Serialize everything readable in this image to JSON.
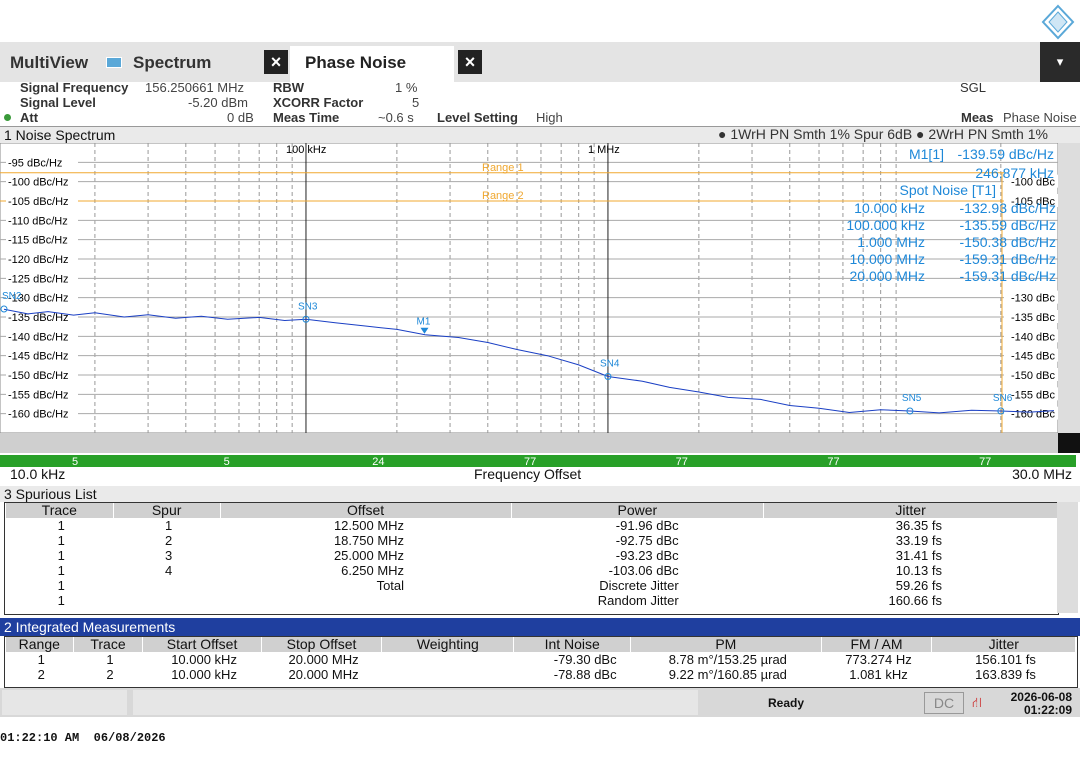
{
  "tabs": [
    "MultiView",
    "Spectrum",
    "Phase Noise"
  ],
  "header_right": {
    "sgl": "SGL",
    "meas_label": "Meas",
    "meas_value": "Phase Noise"
  },
  "settings": [
    [
      "Signal Frequency",
      "156.250661 MHz",
      "RBW",
      "1 %"
    ],
    [
      "Signal Level",
      "-5.20 dBm",
      "XCORR Factor",
      "5"
    ],
    [
      "Att",
      "0 dB",
      "Meas Time",
      "~0.6 s",
      "Level Setting",
      "High"
    ]
  ],
  "noise_window": {
    "title": "1 Noise Spectrum",
    "legend": [
      "1WrH PN Smth 1% Spur 6dB",
      "2WrH PN Smth 1%"
    ]
  },
  "plot": {
    "log_x": true,
    "xlim": [
      10,
      30000
    ],
    "xticks": [
      {
        "value": 100,
        "label": "100 kHz"
      },
      {
        "value": 1000,
        "label": "1 MHz"
      }
    ],
    "minor_xticks": [
      20,
      30,
      40,
      50,
      60,
      70,
      80,
      90,
      200,
      300,
      400,
      500,
      600,
      700,
      800,
      900,
      2000,
      3000,
      4000,
      5000,
      6000,
      7000,
      8000,
      9000,
      20000
    ],
    "ylim": [
      -90,
      -165
    ],
    "yticks": [
      {
        "value": -95,
        "label": "-95 dBc/Hz"
      },
      {
        "value": -100,
        "label": "-100 dBc/Hz"
      },
      {
        "value": -105,
        "label": "-105 dBc/Hz"
      },
      {
        "value": -110,
        "label": "-110 dBc/Hz"
      },
      {
        "value": -115,
        "label": "-115 dBc/Hz"
      },
      {
        "value": -120,
        "label": "-120 dBc/Hz"
      },
      {
        "value": -125,
        "label": "-125 dBc/Hz"
      },
      {
        "value": -130,
        "label": "-130 dBc/Hz"
      },
      {
        "value": -135,
        "label": "-135 dBc/Hz"
      },
      {
        "value": -140,
        "label": "-140 dBc/Hz"
      },
      {
        "value": -145,
        "label": "-145 dBc/Hz"
      },
      {
        "value": -150,
        "label": "-150 dBc/Hz"
      },
      {
        "value": -155,
        "label": "-155 dBc/Hz"
      },
      {
        "value": -160,
        "label": "-160 dBc/Hz"
      }
    ],
    "y2ticks": [
      {
        "value": -100,
        "label": "-100 dBc"
      },
      {
        "value": -105,
        "label": "-105 dBc"
      },
      {
        "value": -130,
        "label": "-130 dBc"
      },
      {
        "value": -135,
        "label": "-135 dBc"
      },
      {
        "value": -140,
        "label": "-140 dBc"
      },
      {
        "value": -145,
        "label": "-145 dBc"
      },
      {
        "value": -150,
        "label": "-150 dBc"
      },
      {
        "value": -155,
        "label": "-155 dBc"
      },
      {
        "value": -160,
        "label": "-160 dBc"
      }
    ],
    "ranges": [
      {
        "label": "Range 1",
        "value": -97.7
      },
      {
        "label": "Range 2",
        "value": -105
      }
    ],
    "grid": true,
    "trace": {
      "color": "#1a3fc4",
      "x": [
        10,
        12,
        14,
        17,
        20,
        25,
        30,
        37,
        45,
        55,
        70,
        85,
        100,
        125,
        160,
        200,
        248,
        320,
        400,
        500,
        630,
        800,
        1000,
        1300,
        1600,
        2000,
        2500,
        3200,
        4000,
        5000,
        6300,
        8000,
        10000,
        12500,
        16000,
        20000,
        25000,
        30000
      ],
      "y": [
        -133.0,
        -134.2,
        -133.6,
        -134.5,
        -133.9,
        -135.0,
        -134.4,
        -135.3,
        -134.8,
        -135.6,
        -135.1,
        -135.9,
        -135.6,
        -136.5,
        -137.4,
        -138.2,
        -139.6,
        -140.3,
        -141.6,
        -143.4,
        -145.0,
        -147.4,
        -150.4,
        -151.6,
        -153.2,
        -154.4,
        -155.8,
        -156.3,
        -157.9,
        -158.6,
        -159.7,
        -159.0,
        -159.3,
        -159.8,
        -159.1,
        -159.3,
        -159.6,
        -159.2
      ]
    },
    "markers": [
      {
        "label": "SN2",
        "x": 10,
        "y": -132.93
      },
      {
        "label": "SN3",
        "x": 100,
        "y": -135.59
      },
      {
        "label": "M1",
        "x": 246.877,
        "y": -139.59
      },
      {
        "label": "SN4",
        "x": 1000,
        "y": -150.38
      },
      {
        "label": "SN5",
        "x": 10000,
        "y": -159.31
      },
      {
        "label": "SN6",
        "x": 20000,
        "y": -159.31
      }
    ],
    "marker_info": {
      "m1": "M1[1]",
      "m1_value": "-139.59 dBc/Hz",
      "m1_freq": "246.877 kHz",
      "spot_title": "Spot Noise [T1]",
      "spots": [
        [
          "10.000 kHz",
          "-132.93 dBc/Hz"
        ],
        [
          "100.000 kHz",
          "-135.59 dBc/Hz"
        ],
        [
          "1.000 MHz",
          "-150.38 dBc/Hz"
        ],
        [
          "10.000 MHz",
          "-159.31 dBc/Hz"
        ],
        [
          "20.000 MHz",
          "-159.31 dBc/Hz"
        ]
      ]
    },
    "decade_counts": [
      "5",
      "5",
      "24",
      "77",
      "77",
      "77",
      "77"
    ],
    "x_start_label": "10.0 kHz",
    "x_title": "Frequency Offset",
    "x_end_label": "30.0 MHz"
  },
  "spurious": {
    "title": "3 Spurious List",
    "columns": [
      "Trace",
      "Spur",
      "Offset",
      "Power",
      "Jitter"
    ],
    "rows": [
      [
        "1",
        "1",
        "12.500 MHz",
        "-91.96 dBc",
        "36.35 fs"
      ],
      [
        "1",
        "2",
        "18.750 MHz",
        "-92.75 dBc",
        "33.19 fs"
      ],
      [
        "1",
        "3",
        "25.000 MHz",
        "-93.23 dBc",
        "31.41 fs"
      ],
      [
        "1",
        "4",
        "6.250 MHz",
        "-103.06 dBc",
        "10.13 fs"
      ],
      [
        "1",
        null,
        "Total",
        "Discrete Jitter",
        "59.26 fs"
      ],
      [
        "1",
        null,
        null,
        "Random Jitter",
        "160.66 fs"
      ]
    ]
  },
  "integrated": {
    "title": "2 Integrated Measurements",
    "columns": [
      "Range",
      "Trace",
      "Start Offset",
      "Stop Offset",
      "Weighting",
      "Int Noise",
      "PM",
      "FM / AM",
      "Jitter"
    ],
    "rows": [
      [
        "1",
        "1",
        "10.000 kHz",
        "20.000 MHz",
        null,
        "-79.30 dBc",
        "8.78 m°/153.25 µrad",
        "773.274 Hz",
        "156.101 fs"
      ],
      [
        "2",
        "2",
        "10.000 kHz",
        "20.000 MHz",
        null,
        "-78.88 dBc",
        "9.22 m°/160.85 µrad",
        "1.081 kHz",
        "163.839 fs"
      ]
    ]
  },
  "status": {
    "ready": "Ready",
    "dc": "DC",
    "date": "2026-06-08",
    "time": "01:22:09"
  },
  "timestamp": "01:22:10 AM  06/08/2026"
}
